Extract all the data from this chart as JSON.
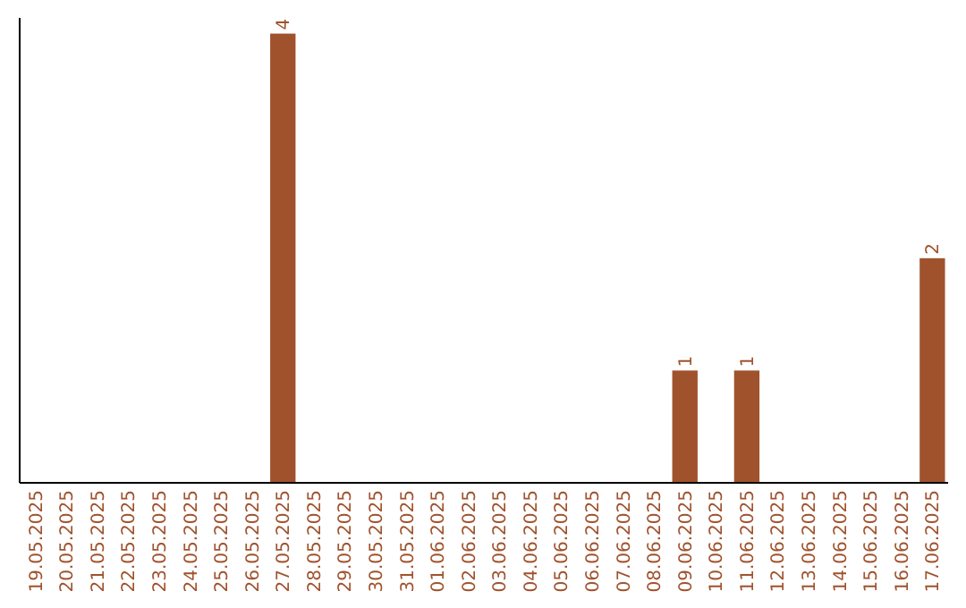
{
  "chart_data": {
    "type": "bar",
    "categories": [
      "19.05.2025",
      "20.05.2025",
      "21.05.2025",
      "22.05.2025",
      "23.05.2025",
      "24.05.2025",
      "25.05.2025",
      "26.05.2025",
      "27.05.2025",
      "28.05.2025",
      "29.05.2025",
      "30.05.2025",
      "31.05.2025",
      "01.06.2025",
      "02.06.2025",
      "03.06.2025",
      "04.06.2025",
      "05.06.2025",
      "06.06.2025",
      "07.06.2025",
      "08.06.2025",
      "09.06.2025",
      "10.06.2025",
      "11.06.2025",
      "12.06.2025",
      "13.06.2025",
      "14.06.2025",
      "15.06.2025",
      "16.06.2025",
      "17.06.2025"
    ],
    "values": [
      0,
      0,
      0,
      0,
      0,
      0,
      0,
      0,
      4,
      0,
      0,
      0,
      0,
      0,
      0,
      0,
      0,
      0,
      0,
      0,
      0,
      1,
      0,
      1,
      0,
      0,
      0,
      0,
      0,
      2
    ],
    "value_labels": [
      null,
      null,
      null,
      null,
      null,
      null,
      null,
      null,
      "4",
      null,
      null,
      null,
      null,
      null,
      null,
      null,
      null,
      null,
      null,
      null,
      null,
      "1",
      null,
      "1",
      null,
      null,
      null,
      null,
      null,
      "2"
    ],
    "color": "#a0522d",
    "tick_labels": "x"
  }
}
